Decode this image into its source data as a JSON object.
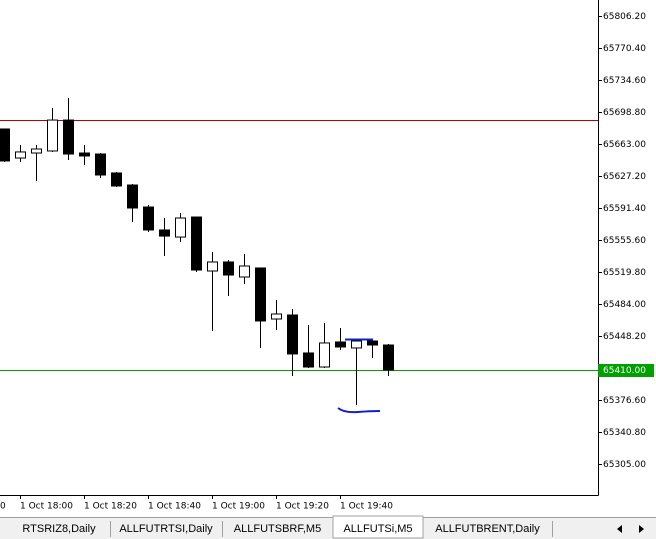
{
  "chart_data": {
    "type": "candlestick",
    "categories": [
      null,
      "1 Oct 18:00",
      null,
      null,
      null,
      "1 Oct 18:20",
      null,
      null,
      null,
      "1 Oct 18:40",
      null,
      null,
      null,
      "1 Oct 19:00",
      null,
      null,
      null,
      "1 Oct 19:20",
      null,
      null,
      null,
      "1 Oct 19:40",
      null,
      null,
      null
    ],
    "clipped_label": "0",
    "open": [
      65679.8,
      65647.3,
      65652.9,
      65655.2,
      65689.8,
      65652.9,
      65651.8,
      65630.6,
      65617.1,
      65592.5,
      65566.8,
      65558.9,
      65581.3,
      65520.9,
      65531.0,
      65514.2,
      65524.3,
      65467.2,
      65471.7,
      65429.2,
      65413.5,
      65441.5,
      65434.8,
      65442.6,
      65438.1
    ],
    "high": [
      65679.8,
      65661.9,
      65661.9,
      65703.3,
      65714.5,
      65661.9,
      65652.9,
      65631.7,
      65618.3,
      65594.8,
      65580.2,
      65585.8,
      65581.3,
      65542.2,
      65533.2,
      65539.9,
      65524.3,
      65488.5,
      65478.4,
      65460.5,
      65462.7,
      65457.1,
      65443.7,
      65444.8,
      65439.2
    ],
    "low": [
      65642.9,
      65642.9,
      65621.6,
      65654.1,
      65645.1,
      65639.5,
      65625.0,
      65614.9,
      65575.7,
      65564.5,
      65537.7,
      65553.4,
      65519.8,
      65453.8,
      65493.0,
      65506.4,
      65434.8,
      65454.9,
      65403.5,
      65412.4,
      65412.4,
      65432.5,
      65371.0,
      65423.6,
      65403.5
    ],
    "close": [
      65644.0,
      65654.1,
      65657.4,
      65689.8,
      65651.8,
      65649.6,
      65628.3,
      65616.0,
      65591.4,
      65566.8,
      65560.0,
      65580.2,
      65522.0,
      65531.0,
      65516.4,
      65526.5,
      65465.0,
      65472.8,
      65428.1,
      65413.5,
      65440.4,
      65435.9,
      65442.6,
      65438.1,
      65410.2
    ],
    "up_color": "#ffffff",
    "down_color": "#000000",
    "ylim": [
      65270.3,
      65824.1
    ],
    "yticks": [
      {
        "value": 65806.2,
        "label": "65806.20"
      },
      {
        "value": 65770.4,
        "label": "65770.40"
      },
      {
        "value": 65734.6,
        "label": "65734.60"
      },
      {
        "value": 65698.8,
        "label": "65698.80"
      },
      {
        "value": 65663,
        "label": "65663.00"
      },
      {
        "value": 65627.2,
        "label": "65627.20"
      },
      {
        "value": 65591.4,
        "label": "65591.40"
      },
      {
        "value": 65555.6,
        "label": "65555.60"
      },
      {
        "value": 65519.8,
        "label": "65519.80"
      },
      {
        "value": 65484,
        "label": "65484.00"
      },
      {
        "value": 65448.2,
        "label": "65448.20"
      },
      {
        "value": 65376.6,
        "label": "65376.60"
      },
      {
        "value": 65340.8,
        "label": "65340.80"
      },
      {
        "value": 65305,
        "label": "65305.00"
      }
    ],
    "hlines": [
      {
        "value": 65689.8,
        "color": "#c00000"
      },
      {
        "value": 65410,
        "label": "65410.00",
        "color": "#00a000"
      }
    ]
  },
  "tabs": [
    {
      "label": "RTSRIZ8,Daily"
    },
    {
      "label": "ALLFUTRTSI,Daily"
    },
    {
      "label": "ALLFUTSBRF,M5"
    },
    {
      "label": "ALLFUTSi,M5",
      "active": true
    },
    {
      "label": "ALLFUTBRENT,Daily"
    }
  ]
}
